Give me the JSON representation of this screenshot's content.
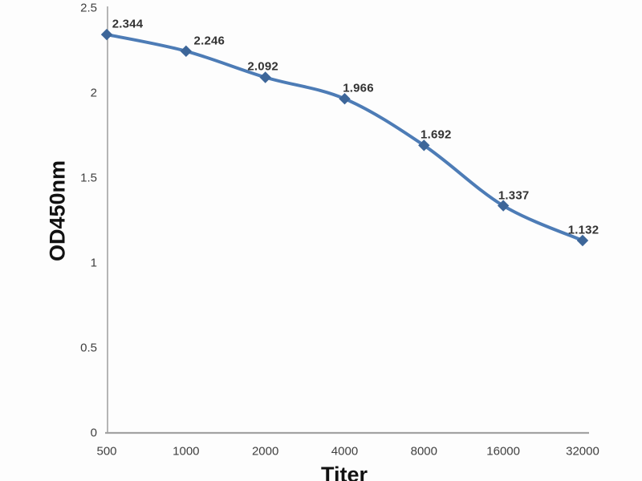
{
  "chart_data": {
    "type": "line",
    "title": "",
    "xlabel": "Titer",
    "ylabel": "OD450nm",
    "categories": [
      "500",
      "1000",
      "2000",
      "4000",
      "8000",
      "16000",
      "32000"
    ],
    "series": [
      {
        "name": "OD450nm",
        "values": [
          2.344,
          2.246,
          2.092,
          1.966,
          1.692,
          1.337,
          1.132
        ],
        "data_labels": [
          "2.344",
          "2.246",
          "2.092",
          "1.966",
          "1.692",
          "1.337",
          "1.132"
        ]
      }
    ],
    "y_ticks": [
      "0",
      "0.5",
      "1",
      "1.5",
      "2",
      "2.5"
    ],
    "y_tick_values": [
      0,
      0.5,
      1,
      1.5,
      2,
      2.5
    ],
    "ylim": [
      0,
      2.5
    ],
    "x_axis_scale": "log2-categorical",
    "grid": false,
    "legend_position": "none",
    "smooth_line": true,
    "marker": "diamond",
    "colors": {
      "line": "#4d7cb6",
      "marker": "#3d6699",
      "axis": "#a3a3a3",
      "tick_text": "#3f3f3f",
      "label_text": "#333333",
      "background": "#fdfdfd"
    }
  }
}
